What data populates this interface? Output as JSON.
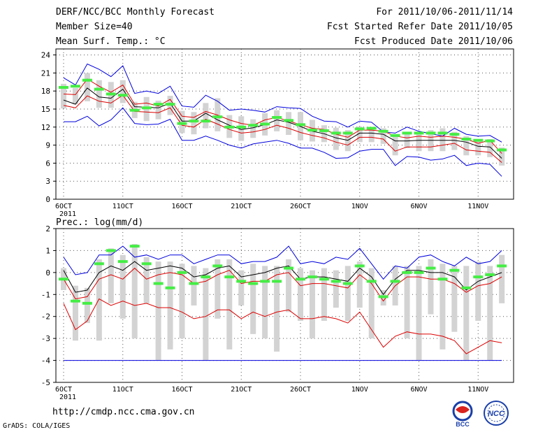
{
  "header": {
    "title": "DERF/NCC/BCC Monthly Forecast",
    "member_size": "Member Size=40",
    "variable": "Mean Surf. Temp.: °C",
    "period": "For 2011/10/06-2011/11/14",
    "started": "Fcst Started Refer Date 2011/10/05",
    "produced": "Fcst Produced Date 2011/10/06"
  },
  "footer": {
    "url": "http://cmdp.ncc.cma.gov.cn",
    "credit": "GrADS: COLA/IGES",
    "logo_bcc": "BCC",
    "logo_ncc": "NCC"
  },
  "colors": {
    "box": "#d3d3d3",
    "green": "#44ee44",
    "envelope": "#0000dd",
    "inner": "#dd0000",
    "mean": "#000000"
  },
  "chart_data": [
    {
      "type": "line",
      "title": "Mean Surf. Temp.: °C",
      "x_labels": [
        "6OCT",
        "11OCT",
        "16OCT",
        "21OCT",
        "26OCT",
        "1NOV",
        "6NOV",
        "11NOV"
      ],
      "x_year": "2011",
      "ylim": [
        0,
        25
      ],
      "yticks": [
        0,
        3,
        6,
        9,
        12,
        15,
        18,
        21,
        24
      ],
      "grid": true,
      "series": [
        {
          "name": "max",
          "color": "blue",
          "values": [
            20.2,
            19.0,
            22.5,
            21.6,
            20.4,
            22.2,
            17.6,
            18.0,
            17.6,
            18.8,
            15.5,
            15.3,
            17.3,
            16.3,
            14.8,
            15.0,
            14.8,
            14.5,
            15.4,
            15.2,
            15.1,
            13.8,
            13.0,
            12.9,
            12.0,
            13.0,
            12.8,
            11.2,
            11.0,
            12.0,
            11.3,
            10.9,
            10.5,
            11.8,
            10.8,
            10.5,
            10.6,
            9.5
          ]
        },
        {
          "name": "upper",
          "color": "red",
          "values": [
            17.5,
            17.4,
            20.0,
            18.8,
            17.8,
            19.0,
            15.8,
            16.0,
            15.5,
            16.6,
            13.8,
            13.6,
            14.6,
            14.0,
            13.2,
            12.6,
            12.3,
            13.2,
            13.6,
            13.0,
            12.4,
            11.8,
            11.6,
            10.8,
            10.3,
            11.5,
            11.5,
            11.3,
            10.5,
            10.2,
            10.5,
            10.3,
            10.5,
            10.3,
            10.0,
            9.3,
            9.8,
            7.6
          ]
        },
        {
          "name": "mean",
          "color": "black",
          "values": [
            16.5,
            15.8,
            18.5,
            17.0,
            16.8,
            18.3,
            15.4,
            15.3,
            15.2,
            16.0,
            13.0,
            13.0,
            14.3,
            13.2,
            12.3,
            11.6,
            11.9,
            12.4,
            13.2,
            12.8,
            12.1,
            11.3,
            10.9,
            10.2,
            9.8,
            11.0,
            11.0,
            10.8,
            9.7,
            9.7,
            9.8,
            9.8,
            9.8,
            9.8,
            9.5,
            8.8,
            8.7,
            6.8
          ]
        },
        {
          "name": "lower",
          "color": "red",
          "values": [
            15.6,
            15.2,
            17.2,
            16.3,
            16.0,
            17.3,
            14.6,
            14.5,
            14.4,
            15.2,
            12.3,
            12.0,
            13.3,
            12.5,
            11.6,
            11.0,
            11.2,
            11.6,
            12.3,
            11.8,
            11.1,
            10.6,
            10.2,
            9.5,
            9.0,
            10.3,
            10.3,
            10.0,
            8.0,
            8.7,
            8.7,
            8.7,
            9.0,
            9.3,
            8.2,
            8.0,
            7.8,
            6.1
          ]
        },
        {
          "name": "min",
          "color": "blue",
          "values": [
            12.9,
            12.9,
            13.8,
            12.2,
            13.2,
            15.2,
            12.6,
            12.4,
            12.5,
            13.3,
            9.8,
            9.8,
            10.5,
            9.8,
            9.0,
            8.5,
            9.2,
            9.5,
            9.8,
            9.3,
            8.5,
            8.5,
            7.8,
            6.8,
            6.9,
            8.0,
            8.3,
            8.3,
            5.6,
            7.1,
            7.0,
            6.5,
            6.7,
            7.3,
            5.6,
            6.0,
            5.8,
            3.8
          ]
        },
        {
          "name": "observed",
          "color": "green",
          "values": [
            18.6,
            18.8,
            19.8,
            18.3,
            17.5,
            17.3,
            14.8,
            15.2,
            15.8,
            15.8,
            12.6,
            13.0,
            13.0,
            13.7,
            12.0,
            12.0,
            12.3,
            12.5,
            13.6,
            13.1,
            12.4,
            11.5,
            11.4,
            11.0,
            11.0,
            11.7,
            11.8,
            11.3,
            10.6,
            11.0,
            11.0,
            11.0,
            11.0,
            10.8,
            10.0,
            9.8,
            9.7,
            8.2
          ]
        },
        {
          "name": "box_top",
          "color": "grey",
          "values": [
            19.2,
            18.5,
            21.0,
            19.8,
            19.5,
            19.8,
            16.2,
            17.0,
            16.4,
            17.2,
            14.7,
            14.5,
            16.0,
            16.8,
            14.0,
            13.8,
            13.3,
            14.3,
            14.8,
            14.5,
            14.5,
            13.2,
            12.3,
            11.9,
            11.5,
            12.1,
            12.0,
            11.8,
            10.8,
            10.8,
            11.0,
            11.5,
            11.8,
            11.2,
            10.5,
            10.0,
            10.0,
            8.6
          ]
        },
        {
          "name": "box_bottom",
          "color": "grey",
          "values": [
            15.1,
            15.8,
            16.3,
            15.2,
            15.2,
            16.0,
            13.5,
            13.0,
            13.3,
            14.0,
            11.0,
            10.8,
            11.8,
            11.3,
            10.2,
            9.7,
            10.2,
            10.6,
            11.3,
            10.7,
            9.8,
            9.6,
            9.5,
            8.2,
            8.0,
            9.5,
            9.5,
            9.2,
            7.3,
            8.5,
            8.0,
            8.0,
            8.0,
            8.2,
            7.3,
            7.3,
            7.0,
            5.6
          ]
        }
      ]
    },
    {
      "type": "line",
      "title": "Prec.: log(mm/d)",
      "x_labels": [
        "6OCT",
        "11OCT",
        "16OCT",
        "21OCT",
        "26OCT",
        "1NOV",
        "6NOV",
        "11NOV"
      ],
      "x_year": "2011",
      "ylim": [
        -5,
        2
      ],
      "yticks": [
        -5,
        -4,
        -3,
        -2,
        -1,
        0,
        1,
        2
      ],
      "grid": true,
      "floor_line": -4,
      "series": [
        {
          "name": "max",
          "color": "blue",
          "values": [
            0.7,
            -0.1,
            0.0,
            0.8,
            0.8,
            1.2,
            0.7,
            0.8,
            0.6,
            0.8,
            0.8,
            0.4,
            0.6,
            0.8,
            0.8,
            0.4,
            0.5,
            0.5,
            0.7,
            1.2,
            0.4,
            0.5,
            0.4,
            0.7,
            0.6,
            1.1,
            0.4,
            -0.3,
            0.3,
            0.2,
            0.7,
            0.8,
            0.5,
            0.3,
            0.7,
            0.4,
            0.5,
            1.0
          ]
        },
        {
          "name": "mean",
          "color": "black",
          "values": [
            0.1,
            -0.9,
            -0.8,
            0.0,
            0.3,
            0.1,
            0.5,
            0.1,
            0.2,
            0.3,
            0.2,
            -0.2,
            -0.1,
            0.2,
            0.3,
            -0.2,
            -0.1,
            0.0,
            0.2,
            0.3,
            -0.3,
            -0.2,
            -0.2,
            -0.3,
            -0.4,
            0.2,
            -0.2,
            -1.0,
            -0.3,
            0.1,
            0.1,
            0.0,
            0.0,
            -0.2,
            -0.8,
            -0.4,
            -0.2,
            0.0
          ]
        },
        {
          "name": "upper",
          "color": "red",
          "values": [
            -0.3,
            -1.2,
            -1.1,
            -0.3,
            -0.1,
            -0.3,
            0.2,
            -0.3,
            -0.1,
            0.0,
            -0.1,
            -0.5,
            -0.4,
            -0.1,
            0.1,
            -0.5,
            -0.4,
            -0.4,
            -0.1,
            0.0,
            -0.6,
            -0.5,
            -0.5,
            -0.6,
            -0.7,
            -0.1,
            -0.5,
            -1.3,
            -0.6,
            -0.2,
            -0.2,
            -0.3,
            -0.3,
            -0.5,
            -0.9,
            -0.6,
            -0.5,
            -0.2
          ]
        },
        {
          "name": "lower",
          "color": "red",
          "values": [
            -1.4,
            -2.6,
            -2.2,
            -1.2,
            -1.5,
            -1.3,
            -1.5,
            -1.4,
            -1.6,
            -1.6,
            -1.8,
            -2.1,
            -2.0,
            -1.7,
            -1.7,
            -2.1,
            -1.8,
            -2.0,
            -1.8,
            -1.7,
            -2.1,
            -2.1,
            -2.0,
            -2.1,
            -2.3,
            -1.8,
            -2.6,
            -3.4,
            -2.9,
            -2.7,
            -2.8,
            -2.8,
            -2.9,
            -3.1,
            -3.7,
            -3.4,
            -3.1,
            -3.2
          ]
        },
        {
          "name": "observed",
          "color": "green",
          "values": [
            -0.3,
            -1.3,
            -1.4,
            0.4,
            1.0,
            0.5,
            1.2,
            0.4,
            -0.5,
            -0.7,
            0.0,
            -0.5,
            -0.2,
            0.3,
            -0.2,
            -0.4,
            -0.5,
            -0.4,
            -0.4,
            0.2,
            -0.3,
            -0.2,
            -0.3,
            -0.4,
            -0.5,
            0.3,
            -0.4,
            -1.1,
            -0.4,
            0.0,
            0.0,
            0.2,
            -0.3,
            0.1,
            -0.7,
            -0.2,
            -0.1,
            0.3
          ]
        },
        {
          "name": "box_top",
          "color": "grey",
          "values": [
            0.2,
            -0.6,
            -0.7,
            0.6,
            1.1,
            0.8,
            1.3,
            0.7,
            0.5,
            0.5,
            0.4,
            0.3,
            0.2,
            0.6,
            0.6,
            0.1,
            0.4,
            0.3,
            0.3,
            0.6,
            0.2,
            0.1,
            0.2,
            0.1,
            0.3,
            0.5,
            0.2,
            -0.8,
            0.3,
            0.3,
            0.3,
            0.6,
            0.4,
            0.3,
            0.3,
            0.5,
            0.3,
            0.8
          ]
        },
        {
          "name": "box_bottom",
          "color": "grey",
          "values": [
            -0.8,
            -3.1,
            -2.3,
            -3.1,
            -1.4,
            -2.1,
            -3.0,
            -1.4,
            -4.0,
            -3.5,
            -3.0,
            -1.5,
            -4.0,
            -2.1,
            -3.5,
            -1.5,
            -2.8,
            -3.0,
            -3.6,
            -1.8,
            -2.2,
            -3.0,
            -2.2,
            -1.6,
            -2.2,
            -1.6,
            -3.0,
            -1.5,
            -1.5,
            -3.0,
            -4.0,
            -1.9,
            -3.5,
            -2.7,
            -4.0,
            -2.2,
            -4.0,
            -1.4
          ]
        }
      ]
    }
  ]
}
